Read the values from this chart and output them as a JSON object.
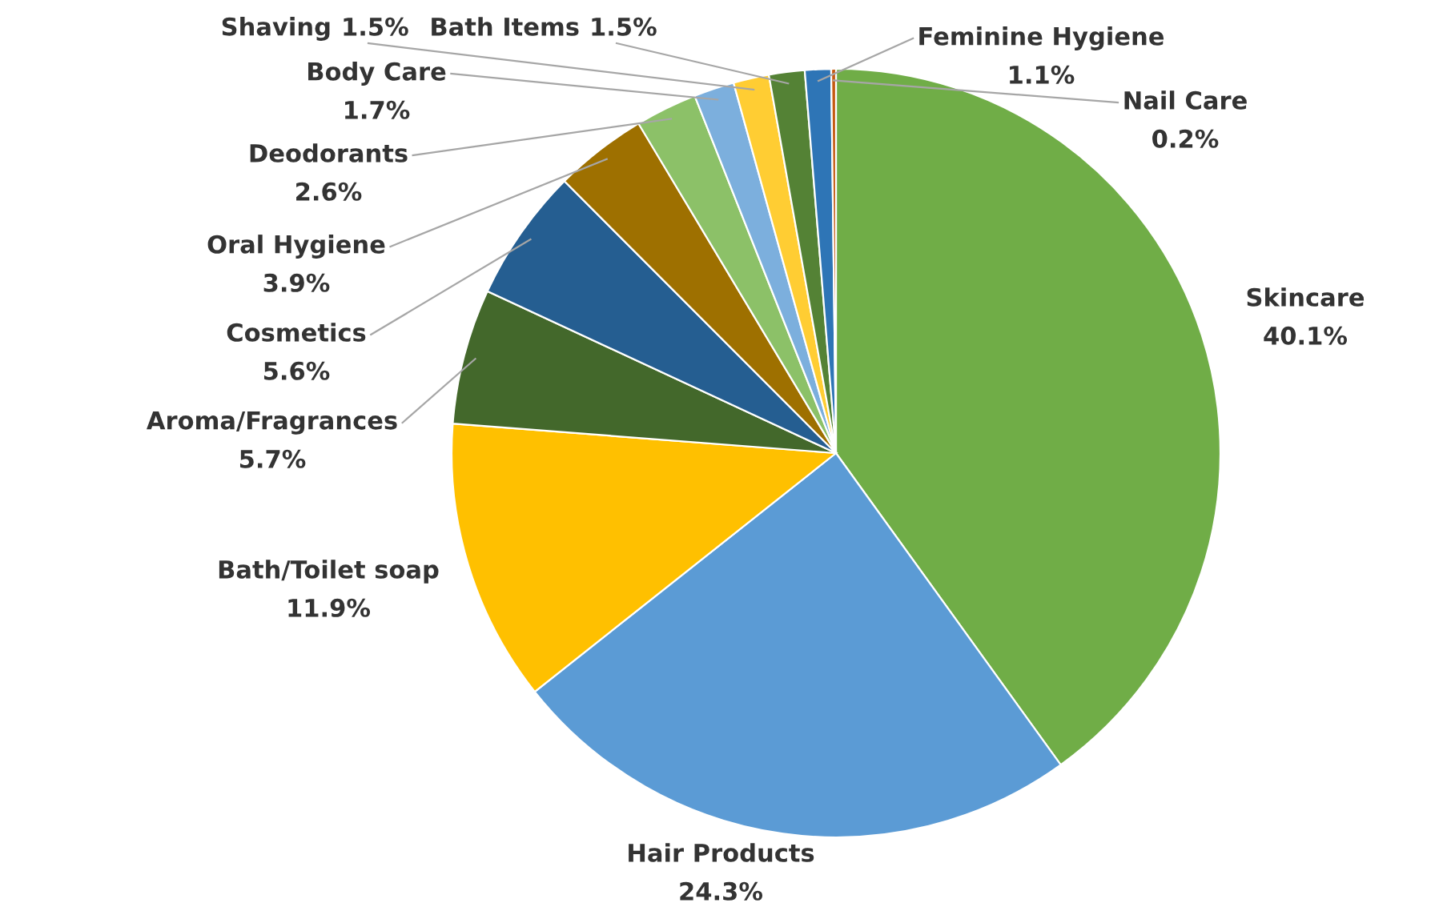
{
  "chart_data": {
    "type": "pie",
    "legend": false,
    "categories": [
      "Skincare",
      "Hair Products",
      "Bath/Toilet soap",
      "Aroma/Fragrances",
      "Cosmetics",
      "Oral Hygiene",
      "Deodorants",
      "Body Care",
      "Shaving",
      "Bath Items",
      "Feminine Hygiene",
      "Nail Care"
    ],
    "values": [
      40.1,
      24.3,
      11.9,
      5.7,
      5.6,
      3.9,
      2.6,
      1.7,
      1.5,
      1.5,
      1.1,
      0.2
    ],
    "value_labels": [
      "40.1%",
      "24.3%",
      "11.9%",
      "5.7%",
      "5.6%",
      "3.9%",
      "2.6%",
      "1.7%",
      "1.5%",
      "1.5%",
      "1.1%",
      "0.2%"
    ],
    "colors": [
      "#70ad47",
      "#5b9bd5",
      "#ffc000",
      "#43682b",
      "#255e91",
      "#9e7000",
      "#8cc168",
      "#7cafdd",
      "#ffcd33",
      "#548235",
      "#2e75b6",
      "#c55a11"
    ]
  }
}
